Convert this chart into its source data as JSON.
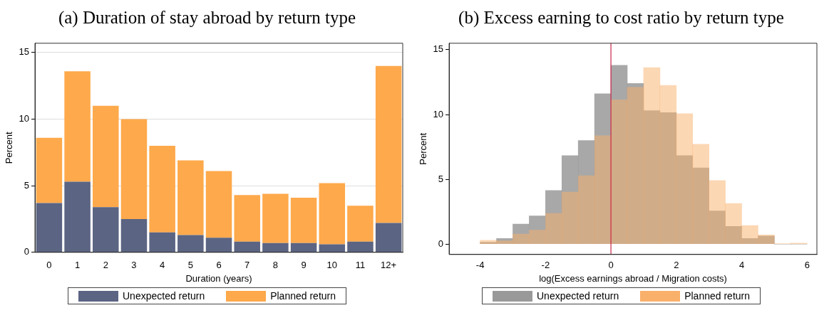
{
  "chart_data": [
    {
      "type": "bar",
      "title": "(a) Duration of stay abroad by return type",
      "xlabel": "Duration (years)",
      "ylabel": "Percent",
      "categories": [
        "0",
        "1",
        "2",
        "3",
        "4",
        "5",
        "6",
        "7",
        "8",
        "9",
        "10",
        "11",
        "12+"
      ],
      "stacked": true,
      "series": [
        {
          "name": "Unexpected return",
          "color": "#5b6482",
          "values": [
            3.7,
            5.3,
            3.4,
            2.5,
            1.5,
            1.3,
            1.1,
            0.8,
            0.7,
            0.7,
            0.6,
            0.8,
            2.2
          ]
        },
        {
          "name": "Planned return",
          "color": "#fea94b",
          "values": [
            4.9,
            8.3,
            7.6,
            7.5,
            6.5,
            5.6,
            5.0,
            3.5,
            3.7,
            3.4,
            4.6,
            2.7,
            11.8
          ]
        }
      ],
      "ylim": [
        0,
        15.7
      ],
      "yticks": [
        0,
        5,
        10,
        15
      ],
      "grid": "y",
      "legend": "bottom"
    },
    {
      "type": "histogram",
      "title": "(b) Excess earning to cost ratio by return type",
      "xlabel": "log(Excess earnings abroad / Migration costs)",
      "ylabel": "Percent",
      "bins": [
        -4,
        -3.5,
        -3,
        -2.5,
        -2,
        -1.5,
        -1,
        -0.5,
        0,
        0.5,
        1,
        1.5,
        2,
        2.5,
        3,
        3.5,
        4,
        4.5,
        5,
        5.5,
        6
      ],
      "series": [
        {
          "name": "Unexpected return",
          "color": "#999999",
          "values": [
            0.15,
            0.43,
            1.55,
            2.18,
            4.14,
            6.83,
            8.0,
            11.6,
            13.8,
            12.4,
            10.3,
            10.15,
            6.83,
            5.88,
            2.56,
            1.36,
            0.43,
            0.62,
            0,
            0
          ]
        },
        {
          "name": "Planned return",
          "color": "#f9b06a",
          "values": [
            0.3,
            0.25,
            0.77,
            1.08,
            2.37,
            4.02,
            5.27,
            8.36,
            11.14,
            12.09,
            13.62,
            12.24,
            10.06,
            7.71,
            4.91,
            3.13,
            1.44,
            0.71,
            0.03,
            0.08
          ]
        }
      ],
      "xlim": [
        -4.95,
        6.3
      ],
      "xticks": [
        -4,
        -2,
        0,
        2,
        4,
        6
      ],
      "ylim": [
        -0.8,
        15.5
      ],
      "yticks": [
        0,
        5,
        10,
        15
      ],
      "ref_lines": [
        {
          "axis": "x",
          "value": 0,
          "color": "#c8284a"
        }
      ],
      "legend": "bottom"
    }
  ]
}
